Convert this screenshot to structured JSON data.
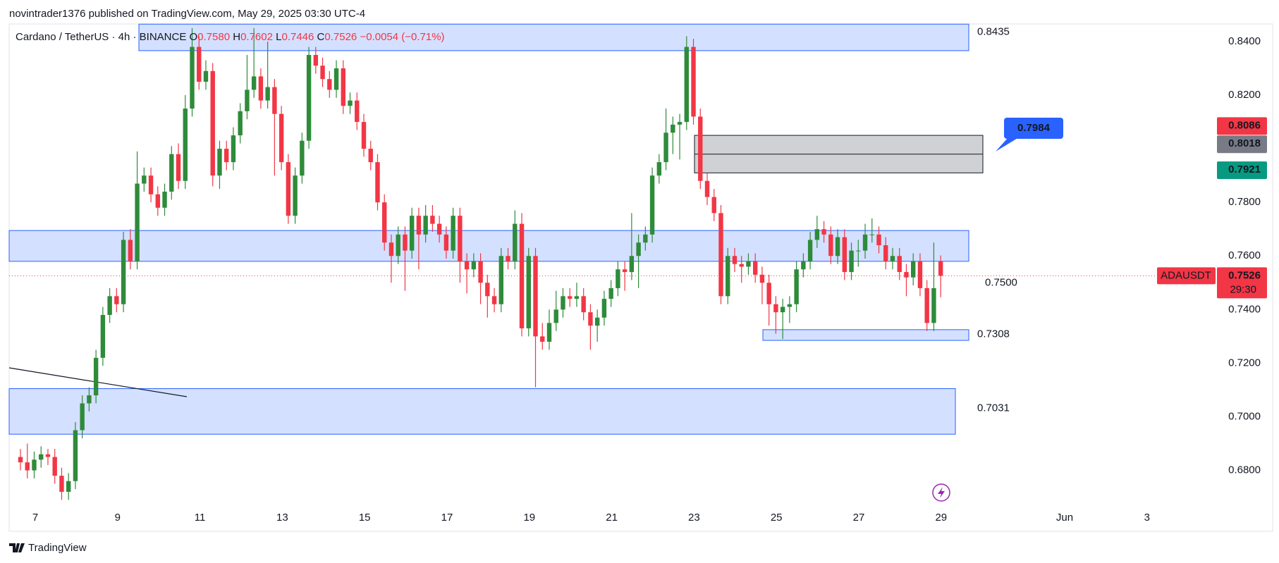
{
  "header": {
    "publisher": "novintrader1376 published on TradingView.com, May 29, 2025 03:30 UTC-4",
    "brand": "TradingView"
  },
  "chart_data": {
    "type": "candlestick",
    "legend": {
      "symbol": "Cardano / TetherUS · 4h · BINANCE",
      "o_label": "O",
      "open": "0.7580",
      "h_label": "H",
      "high": "0.7602",
      "l_label": "L",
      "low": "0.7446",
      "c_label": "C",
      "close": "0.7526",
      "change": "−0.0054 (−0.71%)"
    },
    "up_color": "#2e8b3a",
    "down_color": "#f23645",
    "ylim": [
      0.667,
      0.8463
    ],
    "yticks": [
      {
        "value": 0.68,
        "label": "0.6800"
      },
      {
        "value": 0.7,
        "label": "0.7000"
      },
      {
        "value": 0.72,
        "label": "0.7200"
      },
      {
        "value": 0.74,
        "label": "0.7400"
      },
      {
        "value": 0.76,
        "label": "0.7600"
      },
      {
        "value": 0.78,
        "label": "0.7800"
      },
      {
        "value": 0.8,
        "label": "0.8000"
      },
      {
        "value": 0.82,
        "label": "0.8200"
      },
      {
        "value": 0.84,
        "label": "0.8400"
      }
    ],
    "x_labels": [
      "7",
      "9",
      "11",
      "13",
      "15",
      "17",
      "19",
      "21",
      "23",
      "25",
      "27",
      "29",
      "Jun",
      "3"
    ],
    "ohlc": [
      [
        0.685,
        0.688,
        0.68,
        0.683
      ],
      [
        0.683,
        0.69,
        0.677,
        0.68
      ],
      [
        0.68,
        0.687,
        0.677,
        0.684
      ],
      [
        0.684,
        0.689,
        0.681,
        0.686
      ],
      [
        0.686,
        0.688,
        0.682,
        0.685
      ],
      [
        0.685,
        0.688,
        0.675,
        0.678
      ],
      [
        0.678,
        0.681,
        0.669,
        0.672
      ],
      [
        0.672,
        0.679,
        0.669,
        0.676
      ],
      [
        0.676,
        0.698,
        0.673,
        0.695
      ],
      [
        0.695,
        0.708,
        0.692,
        0.705
      ],
      [
        0.705,
        0.711,
        0.702,
        0.708
      ],
      [
        0.708,
        0.725,
        0.705,
        0.722
      ],
      [
        0.722,
        0.741,
        0.719,
        0.738
      ],
      [
        0.738,
        0.748,
        0.735,
        0.745
      ],
      [
        0.745,
        0.748,
        0.739,
        0.742
      ],
      [
        0.742,
        0.769,
        0.739,
        0.766
      ],
      [
        0.766,
        0.77,
        0.755,
        0.758
      ],
      [
        0.758,
        0.799,
        0.755,
        0.787
      ],
      [
        0.787,
        0.793,
        0.784,
        0.79
      ],
      [
        0.79,
        0.793,
        0.78,
        0.783
      ],
      [
        0.783,
        0.786,
        0.775,
        0.778
      ],
      [
        0.778,
        0.787,
        0.775,
        0.784
      ],
      [
        0.784,
        0.801,
        0.781,
        0.798
      ],
      [
        0.798,
        0.802,
        0.785,
        0.788
      ],
      [
        0.788,
        0.82,
        0.785,
        0.815
      ],
      [
        0.815,
        0.845,
        0.812,
        0.838
      ],
      [
        0.838,
        0.842,
        0.822,
        0.825
      ],
      [
        0.825,
        0.833,
        0.822,
        0.829
      ],
      [
        0.829,
        0.832,
        0.786,
        0.79
      ],
      [
        0.79,
        0.803,
        0.785,
        0.8
      ],
      [
        0.8,
        0.803,
        0.792,
        0.795
      ],
      [
        0.795,
        0.808,
        0.792,
        0.805
      ],
      [
        0.805,
        0.817,
        0.802,
        0.814
      ],
      [
        0.814,
        0.835,
        0.811,
        0.822
      ],
      [
        0.822,
        0.845,
        0.819,
        0.827
      ],
      [
        0.827,
        0.83,
        0.815,
        0.818
      ],
      [
        0.818,
        0.84,
        0.815,
        0.823
      ],
      [
        0.823,
        0.826,
        0.79,
        0.813
      ],
      [
        0.813,
        0.816,
        0.792,
        0.795
      ],
      [
        0.795,
        0.798,
        0.772,
        0.775
      ],
      [
        0.775,
        0.793,
        0.772,
        0.79
      ],
      [
        0.79,
        0.806,
        0.787,
        0.803
      ],
      [
        0.803,
        0.838,
        0.8,
        0.835
      ],
      [
        0.835,
        0.838,
        0.828,
        0.831
      ],
      [
        0.831,
        0.834,
        0.823,
        0.826
      ],
      [
        0.826,
        0.829,
        0.819,
        0.822
      ],
      [
        0.822,
        0.833,
        0.819,
        0.83
      ],
      [
        0.83,
        0.833,
        0.813,
        0.816
      ],
      [
        0.816,
        0.821,
        0.813,
        0.818
      ],
      [
        0.818,
        0.821,
        0.807,
        0.81
      ],
      [
        0.81,
        0.813,
        0.797,
        0.8
      ],
      [
        0.8,
        0.803,
        0.792,
        0.795
      ],
      [
        0.795,
        0.798,
        0.777,
        0.78
      ],
      [
        0.78,
        0.783,
        0.762,
        0.765
      ],
      [
        0.765,
        0.768,
        0.75,
        0.76
      ],
      [
        0.76,
        0.771,
        0.757,
        0.768
      ],
      [
        0.768,
        0.771,
        0.747,
        0.762
      ],
      [
        0.762,
        0.778,
        0.759,
        0.775
      ],
      [
        0.775,
        0.778,
        0.755,
        0.768
      ],
      [
        0.768,
        0.779,
        0.765,
        0.775
      ],
      [
        0.775,
        0.779,
        0.769,
        0.772
      ],
      [
        0.772,
        0.775,
        0.765,
        0.768
      ],
      [
        0.768,
        0.771,
        0.759,
        0.762
      ],
      [
        0.762,
        0.778,
        0.759,
        0.775
      ],
      [
        0.775,
        0.778,
        0.75,
        0.758
      ],
      [
        0.758,
        0.761,
        0.746,
        0.755
      ],
      [
        0.755,
        0.761,
        0.752,
        0.758
      ],
      [
        0.758,
        0.761,
        0.742,
        0.75
      ],
      [
        0.75,
        0.753,
        0.737,
        0.745
      ],
      [
        0.745,
        0.748,
        0.739,
        0.742
      ],
      [
        0.742,
        0.763,
        0.739,
        0.76
      ],
      [
        0.76,
        0.763,
        0.755,
        0.758
      ],
      [
        0.758,
        0.777,
        0.755,
        0.772
      ],
      [
        0.772,
        0.776,
        0.73,
        0.733
      ],
      [
        0.733,
        0.763,
        0.73,
        0.76
      ],
      [
        0.76,
        0.763,
        0.711,
        0.73
      ],
      [
        0.73,
        0.735,
        0.725,
        0.728
      ],
      [
        0.728,
        0.74,
        0.725,
        0.735
      ],
      [
        0.735,
        0.747,
        0.732,
        0.74
      ],
      [
        0.74,
        0.748,
        0.737,
        0.745
      ],
      [
        0.745,
        0.748,
        0.741,
        0.744
      ],
      [
        0.744,
        0.75,
        0.741,
        0.745
      ],
      [
        0.745,
        0.748,
        0.736,
        0.739
      ],
      [
        0.739,
        0.742,
        0.725,
        0.734
      ],
      [
        0.734,
        0.74,
        0.728,
        0.737
      ],
      [
        0.737,
        0.747,
        0.734,
        0.744
      ],
      [
        0.744,
        0.751,
        0.741,
        0.748
      ],
      [
        0.748,
        0.758,
        0.745,
        0.755
      ],
      [
        0.755,
        0.758,
        0.747,
        0.754
      ],
      [
        0.754,
        0.776,
        0.751,
        0.76
      ],
      [
        0.76,
        0.768,
        0.748,
        0.765
      ],
      [
        0.765,
        0.771,
        0.762,
        0.768
      ],
      [
        0.768,
        0.793,
        0.765,
        0.79
      ],
      [
        0.79,
        0.798,
        0.787,
        0.795
      ],
      [
        0.795,
        0.815,
        0.792,
        0.806
      ],
      [
        0.806,
        0.812,
        0.798,
        0.809
      ],
      [
        0.809,
        0.813,
        0.796,
        0.81
      ],
      [
        0.81,
        0.842,
        0.807,
        0.838
      ],
      [
        0.838,
        0.841,
        0.809,
        0.812
      ],
      [
        0.812,
        0.815,
        0.785,
        0.788
      ],
      [
        0.788,
        0.791,
        0.779,
        0.782
      ],
      [
        0.782,
        0.785,
        0.773,
        0.776
      ],
      [
        0.776,
        0.779,
        0.742,
        0.745
      ],
      [
        0.745,
        0.763,
        0.742,
        0.76
      ],
      [
        0.76,
        0.763,
        0.754,
        0.757
      ],
      [
        0.757,
        0.76,
        0.75,
        0.756
      ],
      [
        0.756,
        0.761,
        0.753,
        0.758
      ],
      [
        0.758,
        0.761,
        0.75,
        0.753
      ],
      [
        0.753,
        0.756,
        0.742,
        0.75
      ],
      [
        0.75,
        0.753,
        0.734,
        0.742
      ],
      [
        0.742,
        0.745,
        0.731,
        0.739
      ],
      [
        0.739,
        0.744,
        0.729,
        0.741
      ],
      [
        0.741,
        0.745,
        0.735,
        0.742
      ],
      [
        0.742,
        0.758,
        0.739,
        0.755
      ],
      [
        0.755,
        0.761,
        0.752,
        0.758
      ],
      [
        0.758,
        0.769,
        0.755,
        0.766
      ],
      [
        0.766,
        0.775,
        0.763,
        0.77
      ],
      [
        0.77,
        0.773,
        0.765,
        0.768
      ],
      [
        0.768,
        0.771,
        0.757,
        0.76
      ],
      [
        0.76,
        0.77,
        0.757,
        0.767
      ],
      [
        0.767,
        0.77,
        0.751,
        0.754
      ],
      [
        0.754,
        0.765,
        0.751,
        0.762
      ],
      [
        0.762,
        0.766,
        0.756,
        0.762
      ],
      [
        0.762,
        0.772,
        0.759,
        0.768
      ],
      [
        0.768,
        0.774,
        0.765,
        0.768
      ],
      [
        0.768,
        0.771,
        0.761,
        0.764
      ],
      [
        0.764,
        0.767,
        0.755,
        0.758
      ],
      [
        0.758,
        0.763,
        0.755,
        0.76
      ],
      [
        0.76,
        0.763,
        0.751,
        0.754
      ],
      [
        0.754,
        0.757,
        0.745,
        0.752
      ],
      [
        0.752,
        0.761,
        0.749,
        0.758
      ],
      [
        0.758,
        0.761,
        0.745,
        0.748
      ],
      [
        0.748,
        0.751,
        0.732,
        0.735
      ],
      [
        0.735,
        0.765,
        0.732,
        0.748
      ],
      [
        0.758,
        0.7602,
        0.7446,
        0.7526
      ]
    ],
    "zones": [
      {
        "top": 0.8465,
        "bottom": 0.8366,
        "label": {
          "value": 0.8435,
          "label": "0.8435"
        }
      },
      {
        "top": 0.7695,
        "bottom": 0.758,
        "label": {
          "value": 0.75,
          "label": "0.7500"
        }
      },
      {
        "top": 0.7325,
        "bottom": 0.7285,
        "label": {
          "value": 0.7308,
          "label": "0.7308"
        }
      },
      {
        "top": 0.7105,
        "bottom": 0.6935,
        "label": {
          "value": 0.7031,
          "label": "0.7031"
        }
      }
    ],
    "gray_box": {
      "top": 0.805,
      "middle": 0.798,
      "bottom": 0.791
    },
    "callout": {
      "value": 0.7984,
      "label": "0.7984"
    },
    "price_badges": [
      {
        "value": 0.8086,
        "label": "0.8086",
        "color": "#f23645"
      },
      {
        "value": 0.8018,
        "label": "0.8018",
        "color": "#787b86"
      },
      {
        "value": 0.7921,
        "label": "0.7921",
        "color": "#089981"
      }
    ],
    "current": {
      "symbol": "ADAUSDT",
      "value": 0.7526,
      "label": "0.7526",
      "countdown": "29:30",
      "color": "#f23645"
    }
  }
}
